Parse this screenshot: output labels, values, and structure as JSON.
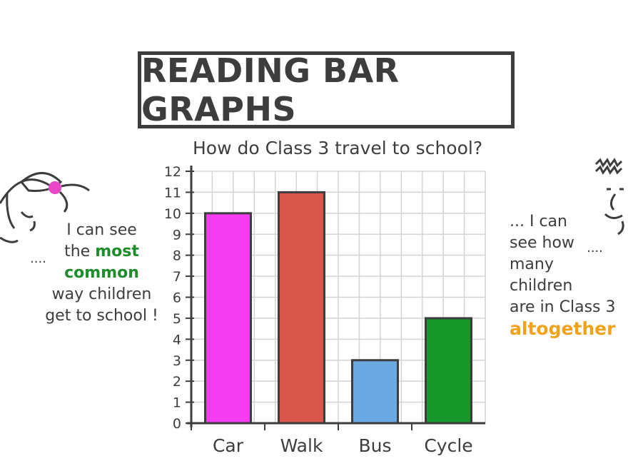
{
  "title": "READING BAR GRAPHS",
  "chart_data": {
    "type": "bar",
    "title": "How do Class 3 travel to school?",
    "categories": [
      "Car",
      "Walk",
      "Bus",
      "Cycle"
    ],
    "values": [
      10,
      11,
      3,
      5
    ],
    "colors": [
      "#f43cf0",
      "#d9574a",
      "#6aa8e3",
      "#17962a"
    ],
    "ylim": [
      0,
      12
    ],
    "yticks": [
      "0",
      "1",
      "2",
      "3",
      "4",
      "5",
      "6",
      "7",
      "8",
      "9",
      "10",
      "11",
      "12"
    ],
    "grid": true,
    "xlabel": "",
    "ylabel": ""
  },
  "left_note": {
    "line1": "I can see",
    "line2_pre": "the ",
    "line2_highlight": "most",
    "line3_highlight": "common",
    "line4": "way children",
    "line5": "get to school !",
    "dots": "....",
    "highlight_color": "#1e8c2a"
  },
  "right_note": {
    "line1": "... I can",
    "line2": "see how",
    "line3": "many",
    "line4": "children",
    "line5": "are in Class 3",
    "line6_highlight": "altogether",
    "dots": "....",
    "highlight_color": "#f0a21a"
  }
}
